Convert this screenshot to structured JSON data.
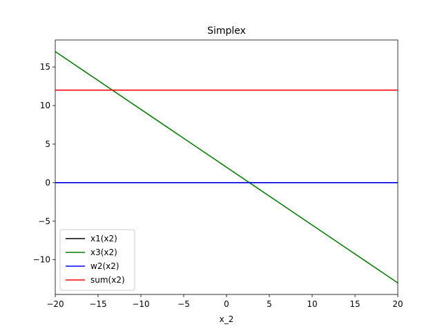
{
  "chart_data": {
    "type": "line",
    "title": "Simplex",
    "xlabel": "x_2",
    "ylabel": "",
    "xlim": [
      -20,
      20
    ],
    "ylim": [
      -14.5,
      18.5
    ],
    "xticks": [
      -20,
      -15,
      -10,
      -5,
      0,
      5,
      10,
      15,
      20
    ],
    "yticks": [
      -10,
      -5,
      0,
      5,
      10,
      15
    ],
    "grid": false,
    "legend_position": "lower-left",
    "series": [
      {
        "name": "x1(x2)",
        "color": "#000000",
        "x": [
          -20,
          20
        ],
        "y": [
          0,
          0
        ]
      },
      {
        "name": "x3(x2)",
        "color": "#008000",
        "x": [
          -20,
          20
        ],
        "y": [
          17,
          -13
        ]
      },
      {
        "name": "w2(x2)",
        "color": "#0000ff",
        "x": [
          -20,
          20
        ],
        "y": [
          0,
          0
        ]
      },
      {
        "name": "sum(x2)",
        "color": "#ff0000",
        "x": [
          -20,
          20
        ],
        "y": [
          12,
          12
        ]
      }
    ]
  }
}
